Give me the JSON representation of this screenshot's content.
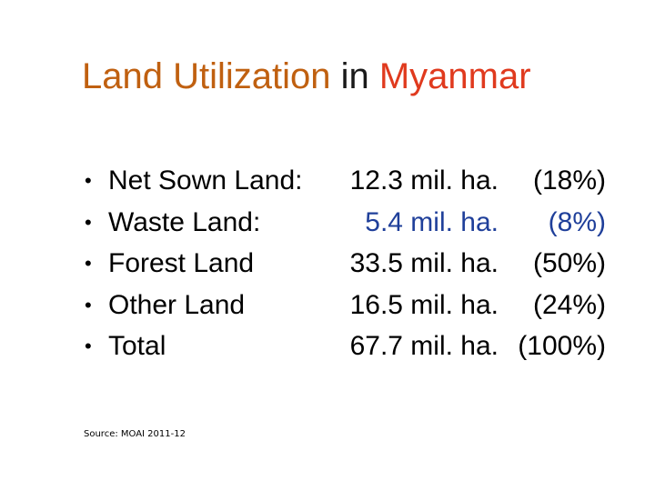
{
  "title": {
    "part1": "Land Utilization",
    "part2": " in ",
    "part3": "Myanmar"
  },
  "rows": [
    {
      "label": "Net Sown Land:",
      "amount": "12.3 mil. ha.",
      "percent": "(18%)"
    },
    {
      "label": "Waste Land:",
      "amount": "5.4 mil. ha.",
      "percent": "(8%)"
    },
    {
      "label": "Forest Land",
      "amount": "33.5 mil. ha.",
      "percent": "(50%)"
    },
    {
      "label": "Other Land",
      "amount": "16.5 mil. ha.",
      "percent": "(24%)"
    },
    {
      "label": "Total",
      "amount": "67.7 mil. ha.",
      "percent": "(100%)"
    }
  ],
  "bullet_glyph": "•",
  "source": "Source: MOAI 2011-12",
  "colors": {
    "title_primary": "#c06010",
    "title_connector": "#1a1a1a",
    "title_accent": "#e03a1e",
    "highlight_text": "#1f3f9a"
  }
}
